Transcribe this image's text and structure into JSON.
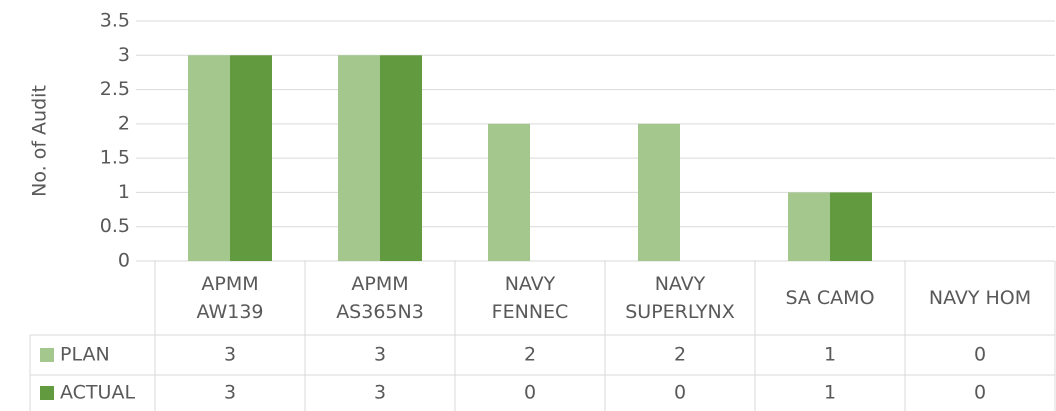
{
  "chart_data": {
    "type": "bar",
    "y_label": "No. of Audit",
    "categories": [
      "APMM AW139",
      "APMM AS365N3",
      "NAVY FENNEC",
      "NAVY SUPERLYNX",
      "SA CAMO",
      "NAVY HOM"
    ],
    "series": [
      {
        "name": "PLAN",
        "color": "#a3c78d",
        "values": [
          3,
          3,
          2,
          2,
          1,
          0
        ]
      },
      {
        "name": "ACTUAL",
        "color": "#629b3f",
        "values": [
          3,
          3,
          0,
          0,
          1,
          0
        ]
      }
    ],
    "ylim": [
      0,
      3.5
    ],
    "yticks": [
      0,
      0.5,
      1,
      1.5,
      2,
      2.5,
      3,
      3.5
    ],
    "grid": true,
    "data_table": true
  }
}
